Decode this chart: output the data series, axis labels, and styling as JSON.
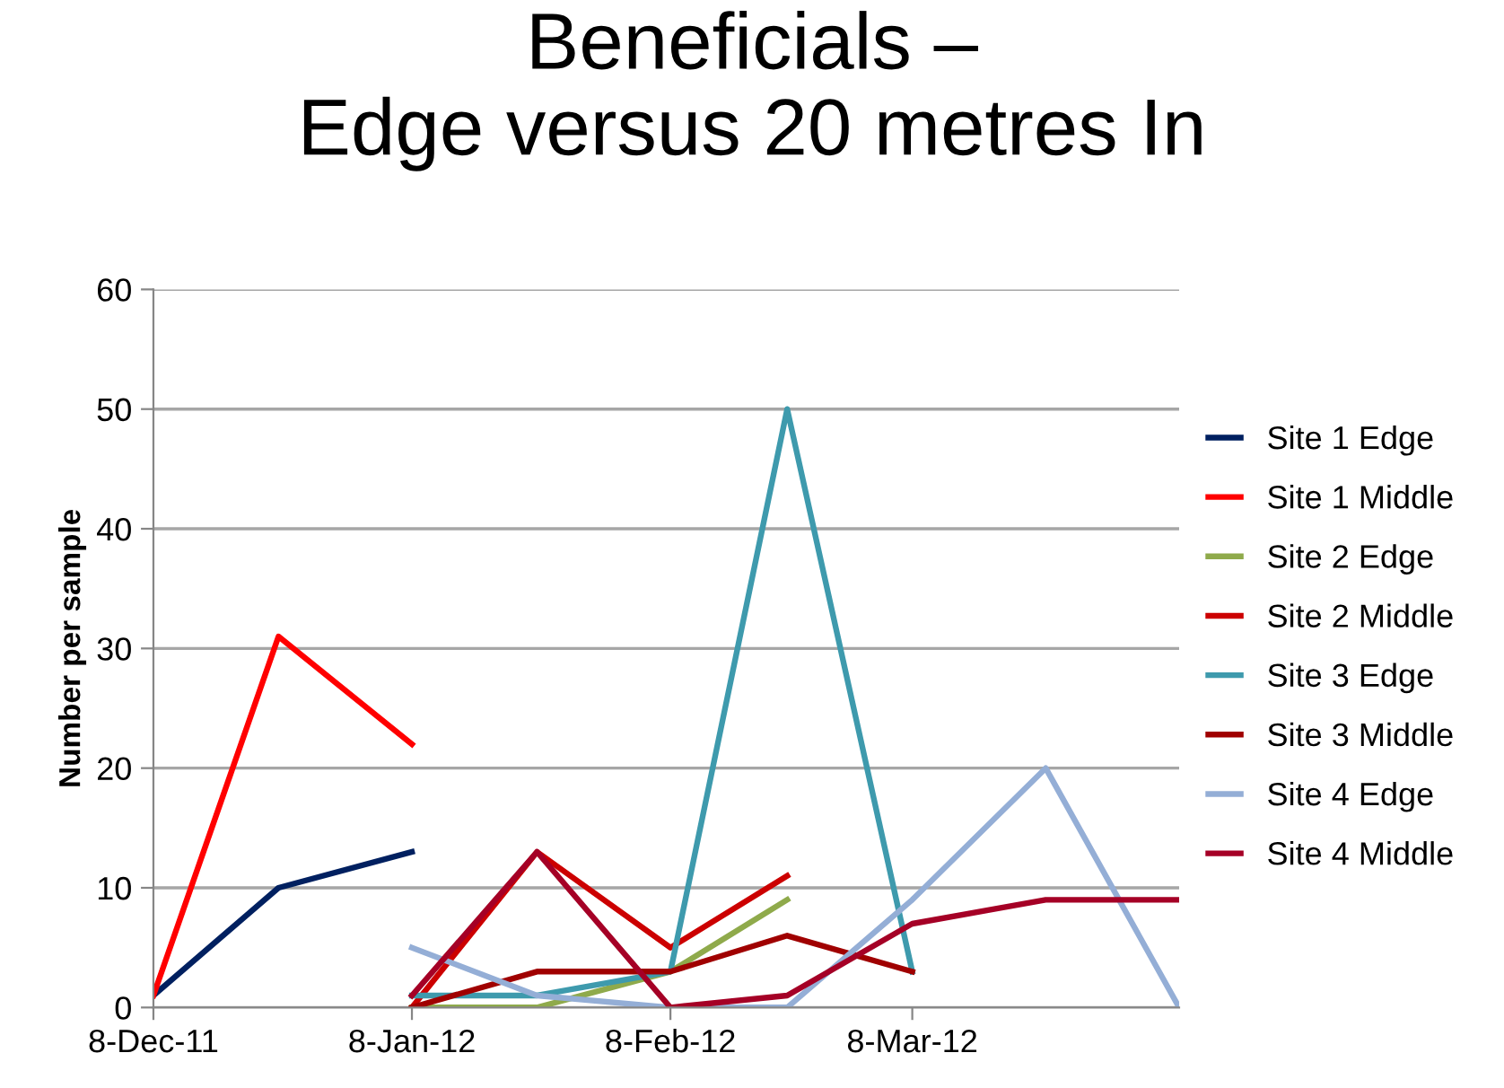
{
  "chart_data": {
    "type": "line",
    "title": "Beneficials –\nEdge versus 20 metres In",
    "ylabel": "Number per sample",
    "xlim": [
      "2011-12-08",
      "2012-04-09"
    ],
    "xticks": [
      {
        "value": "2011-12-08",
        "label": "8-Dec-11"
      },
      {
        "value": "2012-01-08",
        "label": "8-Jan-12"
      },
      {
        "value": "2012-02-08",
        "label": "8-Feb-12"
      },
      {
        "value": "2012-03-08",
        "label": "8-Mar-12"
      }
    ],
    "ylim": [
      0,
      60
    ],
    "yticks": [
      0,
      10,
      20,
      30,
      40,
      50,
      60
    ],
    "grid": "y",
    "legend": "right",
    "marker": "none",
    "line_style": "solid",
    "series": [
      {
        "name": "Site 1 Edge",
        "color": "#002060",
        "x": [
          "2011-12-08",
          "2011-12-23",
          "2012-01-08"
        ],
        "values": [
          1,
          10,
          13
        ]
      },
      {
        "name": "Site 1 Middle",
        "color": "#ff0000",
        "x": [
          "2011-12-08",
          "2011-12-23",
          "2012-01-08"
        ],
        "values": [
          1,
          31,
          22
        ]
      },
      {
        "name": "Site 2 Edge",
        "color": "#8faa4b",
        "x": [
          "2012-01-08",
          "2012-01-23",
          "2012-02-08",
          "2012-02-22"
        ],
        "values": [
          0,
          0,
          3,
          9
        ]
      },
      {
        "name": "Site 2 Middle",
        "color": "#cc0000",
        "x": [
          "2012-01-08",
          "2012-01-23",
          "2012-02-08",
          "2012-02-22"
        ],
        "values": [
          0,
          13,
          5,
          11
        ]
      },
      {
        "name": "Site 3 Edge",
        "color": "#3e9aad",
        "x": [
          "2012-01-08",
          "2012-01-23",
          "2012-02-08",
          "2012-02-22",
          "2012-03-08"
        ],
        "values": [
          1,
          1,
          3,
          50,
          3
        ]
      },
      {
        "name": "Site 3 Middle",
        "color": "#a00000",
        "x": [
          "2012-01-08",
          "2012-01-23",
          "2012-02-08",
          "2012-02-22",
          "2012-03-08"
        ],
        "values": [
          0,
          3,
          3,
          6,
          3
        ]
      },
      {
        "name": "Site 4 Edge",
        "color": "#94aed6",
        "x": [
          "2012-01-08",
          "2012-01-23",
          "2012-02-08",
          "2012-02-22",
          "2012-03-08",
          "2012-03-24",
          "2012-04-09"
        ],
        "values": [
          5,
          1,
          0,
          0,
          9,
          20,
          0
        ]
      },
      {
        "name": "Site 4 Middle",
        "color": "#a50026",
        "x": [
          "2012-01-08",
          "2012-01-23",
          "2012-02-08",
          "2012-02-22",
          "2012-03-08",
          "2012-03-24",
          "2012-04-09"
        ],
        "values": [
          1,
          13,
          0,
          1,
          7,
          9,
          9
        ]
      }
    ]
  }
}
